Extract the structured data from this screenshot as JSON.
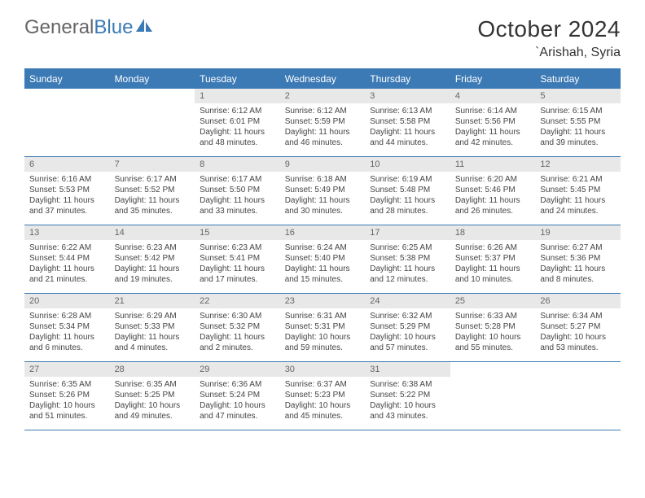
{
  "logo": {
    "text1": "General",
    "text2": "Blue",
    "icon_color": "#3c7ab5"
  },
  "header": {
    "month": "October 2024",
    "location": "`Arishah, Syria"
  },
  "colors": {
    "accent": "#3c7ab5",
    "daynum_bg": "#e8e8e8",
    "text": "#333333"
  },
  "weekdays": [
    "Sunday",
    "Monday",
    "Tuesday",
    "Wednesday",
    "Thursday",
    "Friday",
    "Saturday"
  ],
  "weeks": [
    [
      null,
      null,
      {
        "n": "1",
        "sunrise": "6:12 AM",
        "sunset": "6:01 PM",
        "daylight": "11 hours and 48 minutes."
      },
      {
        "n": "2",
        "sunrise": "6:12 AM",
        "sunset": "5:59 PM",
        "daylight": "11 hours and 46 minutes."
      },
      {
        "n": "3",
        "sunrise": "6:13 AM",
        "sunset": "5:58 PM",
        "daylight": "11 hours and 44 minutes."
      },
      {
        "n": "4",
        "sunrise": "6:14 AM",
        "sunset": "5:56 PM",
        "daylight": "11 hours and 42 minutes."
      },
      {
        "n": "5",
        "sunrise": "6:15 AM",
        "sunset": "5:55 PM",
        "daylight": "11 hours and 39 minutes."
      }
    ],
    [
      {
        "n": "6",
        "sunrise": "6:16 AM",
        "sunset": "5:53 PM",
        "daylight": "11 hours and 37 minutes."
      },
      {
        "n": "7",
        "sunrise": "6:17 AM",
        "sunset": "5:52 PM",
        "daylight": "11 hours and 35 minutes."
      },
      {
        "n": "8",
        "sunrise": "6:17 AM",
        "sunset": "5:50 PM",
        "daylight": "11 hours and 33 minutes."
      },
      {
        "n": "9",
        "sunrise": "6:18 AM",
        "sunset": "5:49 PM",
        "daylight": "11 hours and 30 minutes."
      },
      {
        "n": "10",
        "sunrise": "6:19 AM",
        "sunset": "5:48 PM",
        "daylight": "11 hours and 28 minutes."
      },
      {
        "n": "11",
        "sunrise": "6:20 AM",
        "sunset": "5:46 PM",
        "daylight": "11 hours and 26 minutes."
      },
      {
        "n": "12",
        "sunrise": "6:21 AM",
        "sunset": "5:45 PM",
        "daylight": "11 hours and 24 minutes."
      }
    ],
    [
      {
        "n": "13",
        "sunrise": "6:22 AM",
        "sunset": "5:44 PM",
        "daylight": "11 hours and 21 minutes."
      },
      {
        "n": "14",
        "sunrise": "6:23 AM",
        "sunset": "5:42 PM",
        "daylight": "11 hours and 19 minutes."
      },
      {
        "n": "15",
        "sunrise": "6:23 AM",
        "sunset": "5:41 PM",
        "daylight": "11 hours and 17 minutes."
      },
      {
        "n": "16",
        "sunrise": "6:24 AM",
        "sunset": "5:40 PM",
        "daylight": "11 hours and 15 minutes."
      },
      {
        "n": "17",
        "sunrise": "6:25 AM",
        "sunset": "5:38 PM",
        "daylight": "11 hours and 12 minutes."
      },
      {
        "n": "18",
        "sunrise": "6:26 AM",
        "sunset": "5:37 PM",
        "daylight": "11 hours and 10 minutes."
      },
      {
        "n": "19",
        "sunrise": "6:27 AM",
        "sunset": "5:36 PM",
        "daylight": "11 hours and 8 minutes."
      }
    ],
    [
      {
        "n": "20",
        "sunrise": "6:28 AM",
        "sunset": "5:34 PM",
        "daylight": "11 hours and 6 minutes."
      },
      {
        "n": "21",
        "sunrise": "6:29 AM",
        "sunset": "5:33 PM",
        "daylight": "11 hours and 4 minutes."
      },
      {
        "n": "22",
        "sunrise": "6:30 AM",
        "sunset": "5:32 PM",
        "daylight": "11 hours and 2 minutes."
      },
      {
        "n": "23",
        "sunrise": "6:31 AM",
        "sunset": "5:31 PM",
        "daylight": "10 hours and 59 minutes."
      },
      {
        "n": "24",
        "sunrise": "6:32 AM",
        "sunset": "5:29 PM",
        "daylight": "10 hours and 57 minutes."
      },
      {
        "n": "25",
        "sunrise": "6:33 AM",
        "sunset": "5:28 PM",
        "daylight": "10 hours and 55 minutes."
      },
      {
        "n": "26",
        "sunrise": "6:34 AM",
        "sunset": "5:27 PM",
        "daylight": "10 hours and 53 minutes."
      }
    ],
    [
      {
        "n": "27",
        "sunrise": "6:35 AM",
        "sunset": "5:26 PM",
        "daylight": "10 hours and 51 minutes."
      },
      {
        "n": "28",
        "sunrise": "6:35 AM",
        "sunset": "5:25 PM",
        "daylight": "10 hours and 49 minutes."
      },
      {
        "n": "29",
        "sunrise": "6:36 AM",
        "sunset": "5:24 PM",
        "daylight": "10 hours and 47 minutes."
      },
      {
        "n": "30",
        "sunrise": "6:37 AM",
        "sunset": "5:23 PM",
        "daylight": "10 hours and 45 minutes."
      },
      {
        "n": "31",
        "sunrise": "6:38 AM",
        "sunset": "5:22 PM",
        "daylight": "10 hours and 43 minutes."
      },
      null,
      null
    ]
  ],
  "labels": {
    "sunrise": "Sunrise:",
    "sunset": "Sunset:",
    "daylight": "Daylight:"
  }
}
